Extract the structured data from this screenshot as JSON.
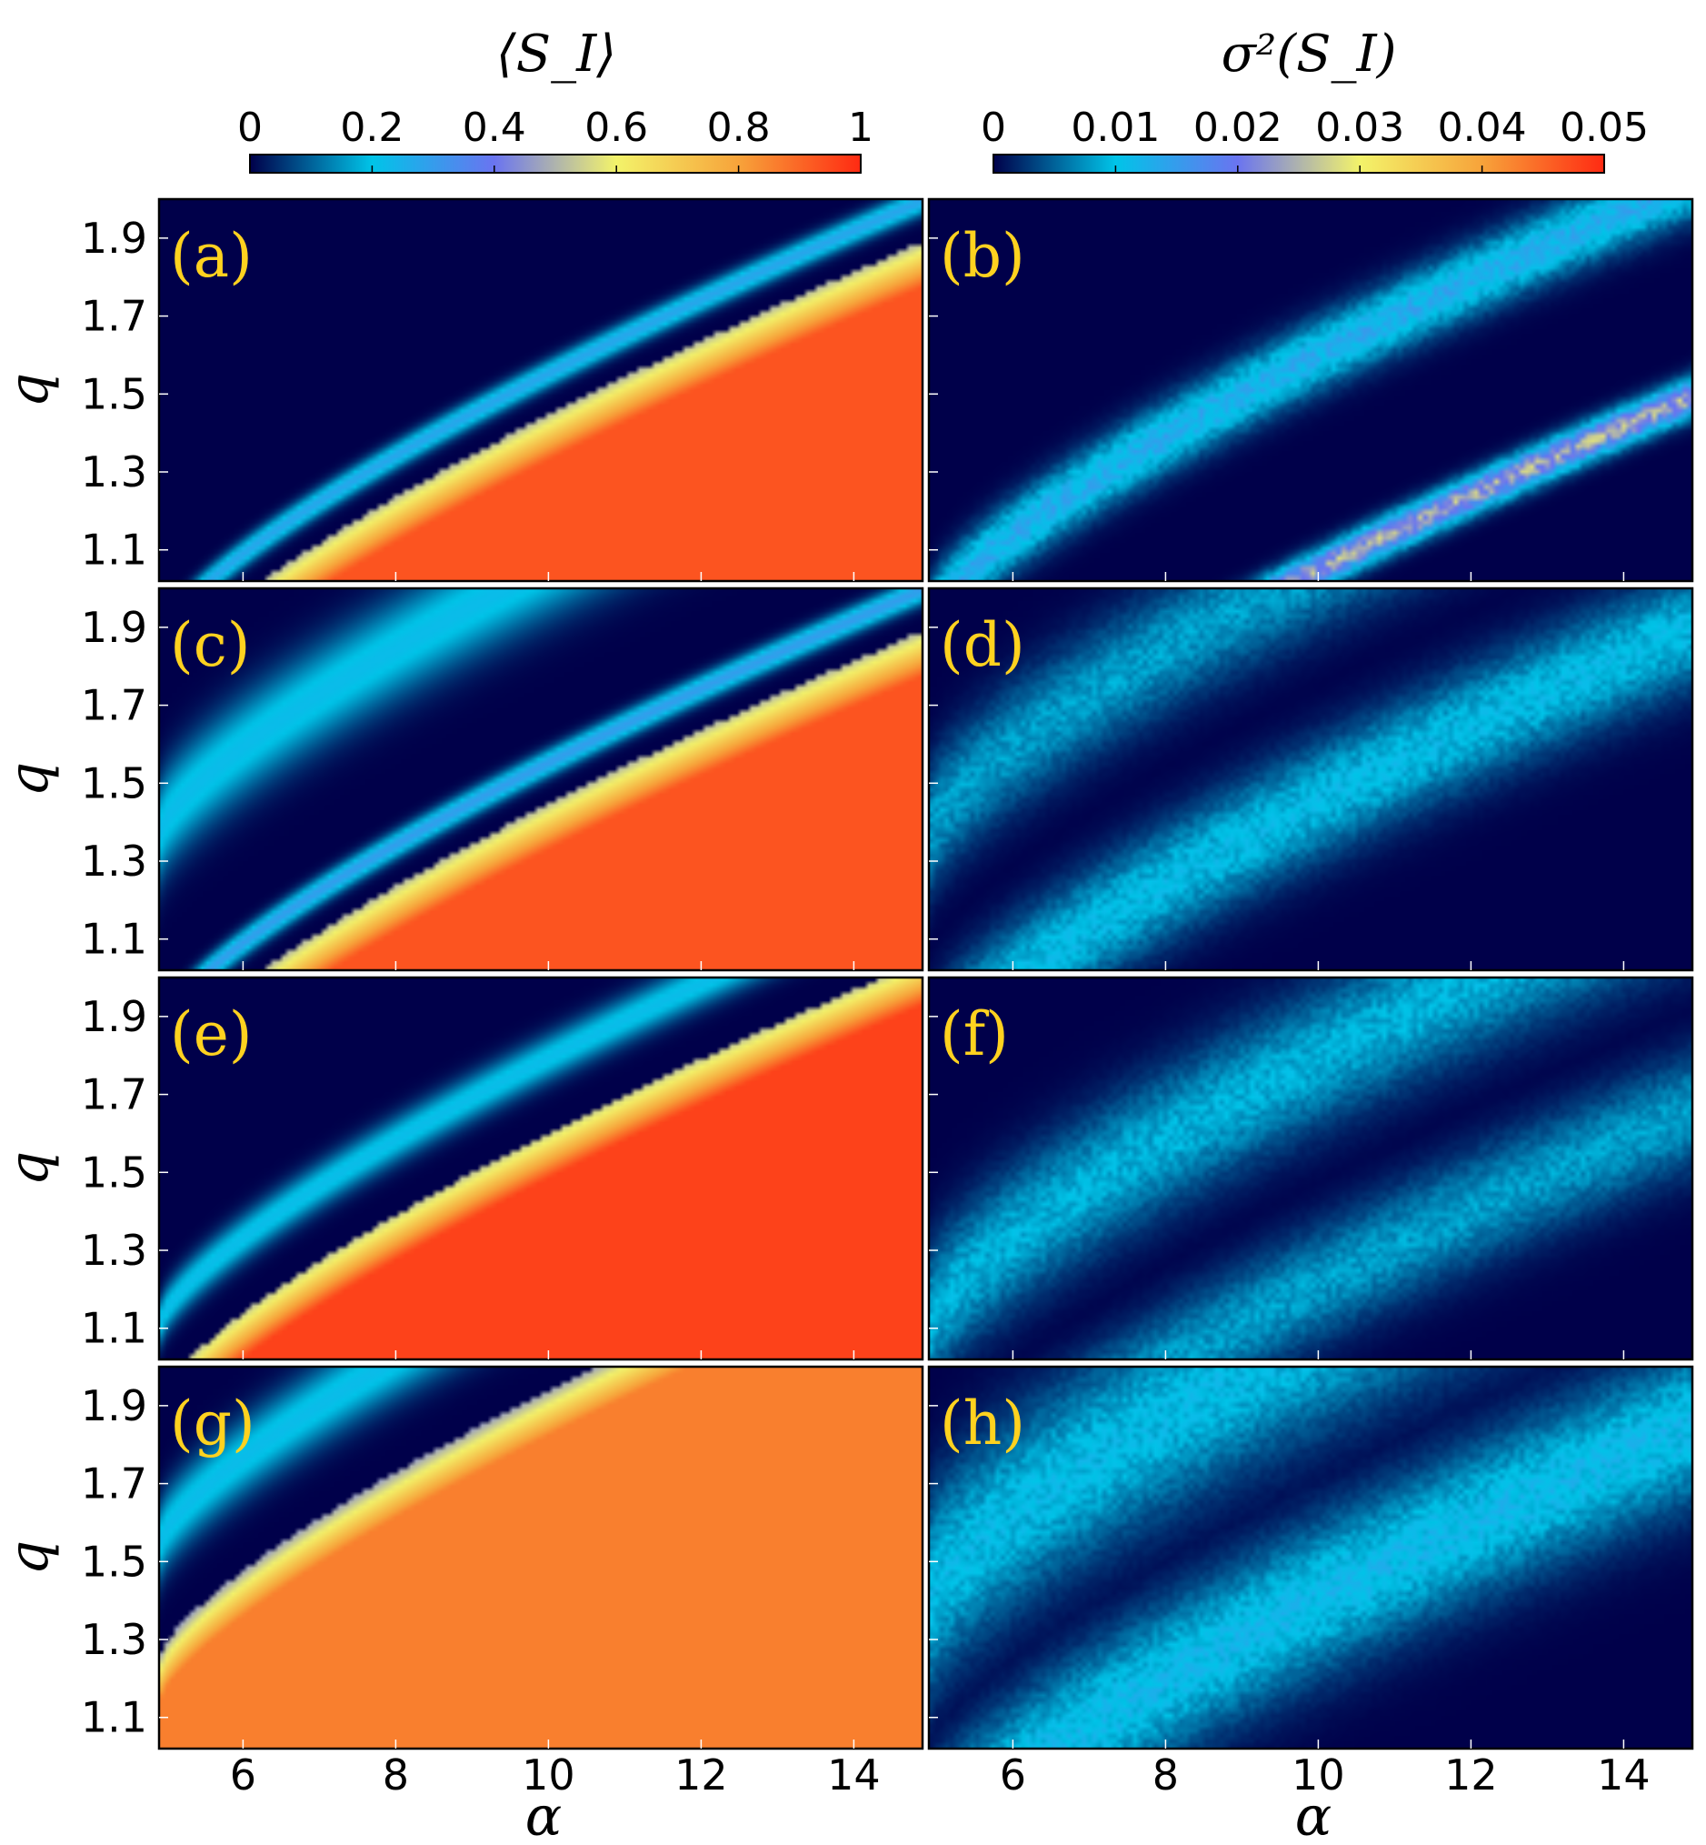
{
  "chart_data": {
    "type": "heatmap",
    "colorbars": [
      {
        "title": "⟨S_I⟩",
        "ticks": [
          "0",
          "0.2",
          "0.4",
          "0.6",
          "0.8",
          "1"
        ],
        "range": [
          0,
          1
        ]
      },
      {
        "title": "σ²(S_I)",
        "ticks": [
          "0",
          "0.01",
          "0.02",
          "0.03",
          "0.04",
          "0.05"
        ],
        "range": [
          0,
          0.05
        ]
      }
    ],
    "colormap": [
      "#00004a",
      "#00c4e8",
      "#6a74f0",
      "#f3f36a",
      "#f7a33a",
      "#ff2a12"
    ],
    "x_axis": {
      "label": "α",
      "ticks": [
        "6",
        "8",
        "10",
        "12",
        "14"
      ],
      "tick_values": [
        6,
        8,
        10,
        12,
        14
      ],
      "range": [
        4.9,
        14.9
      ]
    },
    "y_axis": {
      "label": "q",
      "ticks": [
        "1.9",
        "1.7",
        "1.5",
        "1.3",
        "1.1"
      ],
      "tick_values": [
        1.9,
        1.7,
        1.5,
        1.3,
        1.1
      ],
      "range": [
        1.02,
        2.0
      ]
    },
    "panels": [
      {
        "label": "(a)",
        "quantity": "mean",
        "bands": [
          {
            "center": 0.0,
            "value": 0.28,
            "width": 0.035
          },
          {
            "center": -0.11,
            "value": 0.93,
            "fill": true
          },
          {
            "center": -0.55,
            "value": 0.3,
            "width": 0.04
          }
        ]
      },
      {
        "label": "(b)",
        "quantity": "variance",
        "bands": [
          {
            "center": 0.05,
            "value": 0.013,
            "width": 0.09
          },
          {
            "center": -0.52,
            "value": 0.024,
            "width": 0.05
          }
        ]
      },
      {
        "label": "(c)",
        "quantity": "mean",
        "bands": [
          {
            "center": 0.52,
            "value": 0.22,
            "width": 0.13
          },
          {
            "center": 0.0,
            "value": 0.3,
            "width": 0.035
          },
          {
            "center": -0.11,
            "value": 0.93,
            "fill": true
          }
        ]
      },
      {
        "label": "(d)",
        "quantity": "variance",
        "bands": [
          {
            "center": 0.52,
            "value": 0.008,
            "width": 0.16
          },
          {
            "center": -0.1,
            "value": 0.01,
            "width": 0.15
          }
        ]
      },
      {
        "label": "(e)",
        "quantity": "mean",
        "bands": [
          {
            "center": 0.25,
            "value": 0.22,
            "width": 0.06
          },
          {
            "center": 0.05,
            "value": 0.96,
            "fill": true
          }
        ]
      },
      {
        "label": "(f)",
        "quantity": "variance",
        "bands": [
          {
            "center": 0.25,
            "value": 0.009,
            "width": 0.18
          },
          {
            "center": -0.35,
            "value": 0.008,
            "width": 0.15
          }
        ]
      },
      {
        "label": "(g)",
        "quantity": "mean",
        "bands": [
          {
            "center": 0.7,
            "value": 0.22,
            "width": 0.1
          },
          {
            "center": 0.4,
            "value": 0.86,
            "fill": true
          }
        ]
      },
      {
        "label": "(h)",
        "quantity": "variance",
        "bands": [
          {
            "center": 0.55,
            "value": 0.01,
            "width": 0.25
          },
          {
            "center": -0.15,
            "value": 0.011,
            "width": 0.2
          }
        ]
      }
    ]
  }
}
